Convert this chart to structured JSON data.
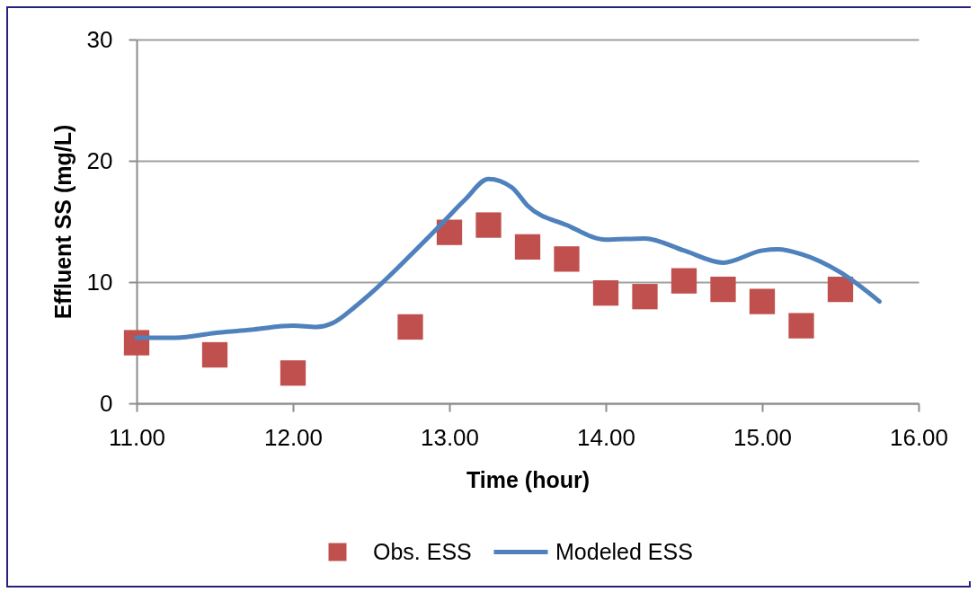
{
  "chart_data": {
    "type": "line",
    "xlabel": "Time (hour)",
    "ylabel": "Effluent SS (mg/L)",
    "xlim": [
      11,
      16
    ],
    "xticks": [
      {
        "value": 11,
        "label": "11.00"
      },
      {
        "value": 12,
        "label": "12.00"
      },
      {
        "value": 13,
        "label": "13.00"
      },
      {
        "value": 14,
        "label": "14.00"
      },
      {
        "value": 15,
        "label": "15.00"
      },
      {
        "value": 16,
        "label": "16.00"
      }
    ],
    "ylim": [
      0,
      30
    ],
    "yticks": [
      0,
      10,
      20,
      30
    ],
    "grid": "y",
    "legend": "bottom",
    "line_style": "solid",
    "series": [
      {
        "name": "Obs. ESS",
        "type": "scatter",
        "marker": "square",
        "color": "#c0504d",
        "x": [
          11,
          11.5,
          12,
          12.75,
          13,
          13.25,
          13.5,
          13.75,
          14,
          14.25,
          14.5,
          14.75,
          15,
          15.25,
          15.5
        ],
        "values": [
          5.0,
          4.0,
          2.5,
          6.3,
          14.1,
          14.7,
          12.9,
          11.9,
          9.1,
          8.8,
          10.1,
          9.4,
          8.4,
          6.4,
          9.4
        ]
      },
      {
        "name": "Modeled ESS",
        "color": "#4f81bd",
        "x": [
          11,
          11.25,
          11.5,
          11.75,
          12,
          12.15,
          12.25,
          12.4,
          12.5,
          12.75,
          12.95,
          13.1,
          13.25,
          13.4,
          13.5,
          13.75,
          14,
          14.25,
          14.5,
          14.75,
          15,
          15.1,
          15.25,
          15.5,
          15.75
        ],
        "values": [
          5.4,
          5.4,
          5.8,
          6.1,
          6.4,
          6.3,
          6.6,
          8.0,
          9.1,
          12.2,
          14.8,
          16.8,
          18.5,
          17.8,
          16.3,
          14.7,
          13.5,
          13.6,
          12.6,
          11.6,
          12.6,
          12.7,
          12.3,
          10.8,
          8.4
        ]
      }
    ]
  }
}
